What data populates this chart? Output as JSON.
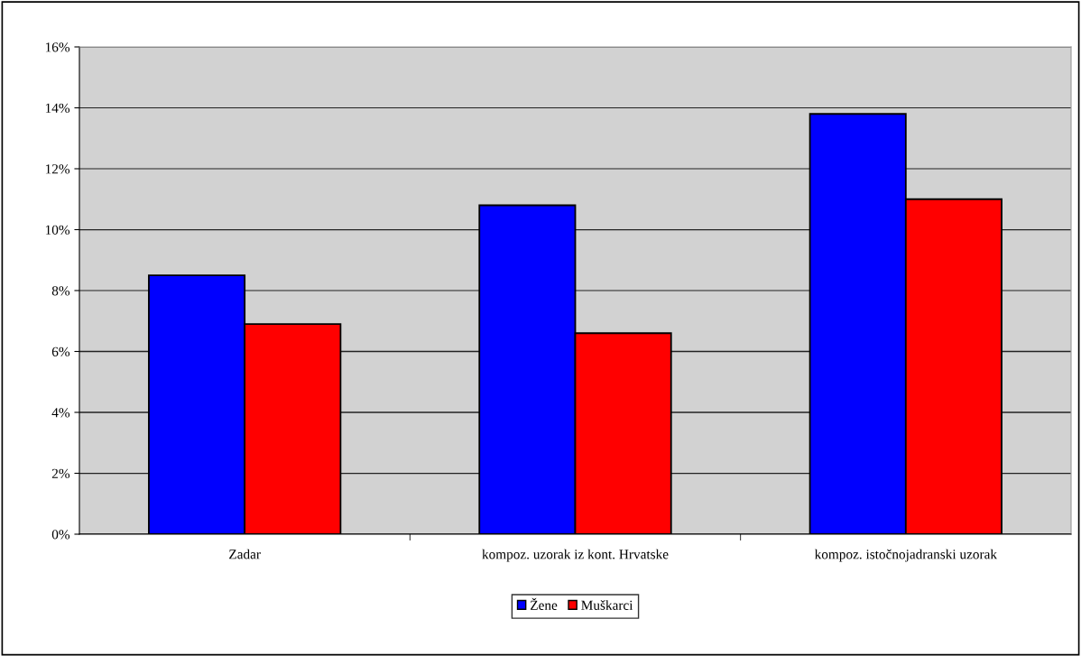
{
  "chart_data": {
    "type": "bar",
    "categories": [
      "Zadar",
      "kompoz. uzorak iz kont. Hrvatske",
      "kompoz. istočnojadranski uzorak"
    ],
    "series": [
      {
        "name": "Žene",
        "color": "#0000ff",
        "values": [
          8.5,
          10.8,
          13.8
        ]
      },
      {
        "name": "Muškarci",
        "color": "#ff0000",
        "values": [
          6.9,
          6.6,
          11.0
        ]
      }
    ],
    "ylim": [
      0,
      16
    ],
    "yticks": [
      {
        "value": 0,
        "label": "0%"
      },
      {
        "value": 2,
        "label": "2%"
      },
      {
        "value": 4,
        "label": "4%"
      },
      {
        "value": 6,
        "label": "6%"
      },
      {
        "value": 8,
        "label": "8%"
      },
      {
        "value": 10,
        "label": "10%"
      },
      {
        "value": 12,
        "label": "12%"
      },
      {
        "value": 14,
        "label": "14%"
      },
      {
        "value": 16,
        "label": "16%"
      }
    ],
    "grid": "y",
    "legend": "bottom"
  }
}
